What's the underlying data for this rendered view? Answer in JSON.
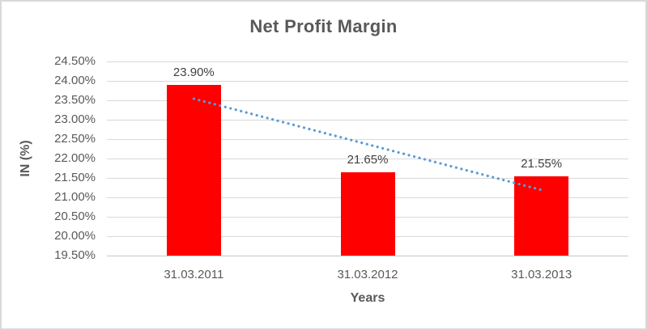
{
  "frame": {
    "background": "#FFFFFF",
    "border_color": "#D9D9D9"
  },
  "colors": {
    "title": "#595959",
    "axis_title": "#595959",
    "tick_label": "#595959",
    "data_label": "#404040",
    "gridline": "#D9D9D9",
    "axis_line": "#C6C6C6",
    "bar": "#FF0000",
    "trendline": "#5B9BD5"
  },
  "chart_data": {
    "type": "bar",
    "title": "Net Profit Margin",
    "xlabel": "Years",
    "ylabel": "IN (%)",
    "categories": [
      "31.03.2011",
      "31.03.2012",
      "31.03.2013"
    ],
    "values": [
      23.9,
      21.65,
      21.55
    ],
    "data_labels": [
      "23.90%",
      "21.65%",
      "21.55%"
    ],
    "ylim": [
      19.5,
      24.5
    ],
    "y_tick_step": 0.5,
    "y_tick_labels": [
      "24.50%",
      "24.00%",
      "23.50%",
      "23.00%",
      "22.50%",
      "22.00%",
      "21.50%",
      "21.00%",
      "20.50%",
      "20.00%",
      "19.50%"
    ],
    "grid": true,
    "legend": false,
    "bar_color": "#FF0000",
    "trendline": {
      "type": "linear",
      "style": "dotted",
      "color": "#5B9BD5",
      "start_value": 23.54,
      "end_value": 21.19
    }
  }
}
